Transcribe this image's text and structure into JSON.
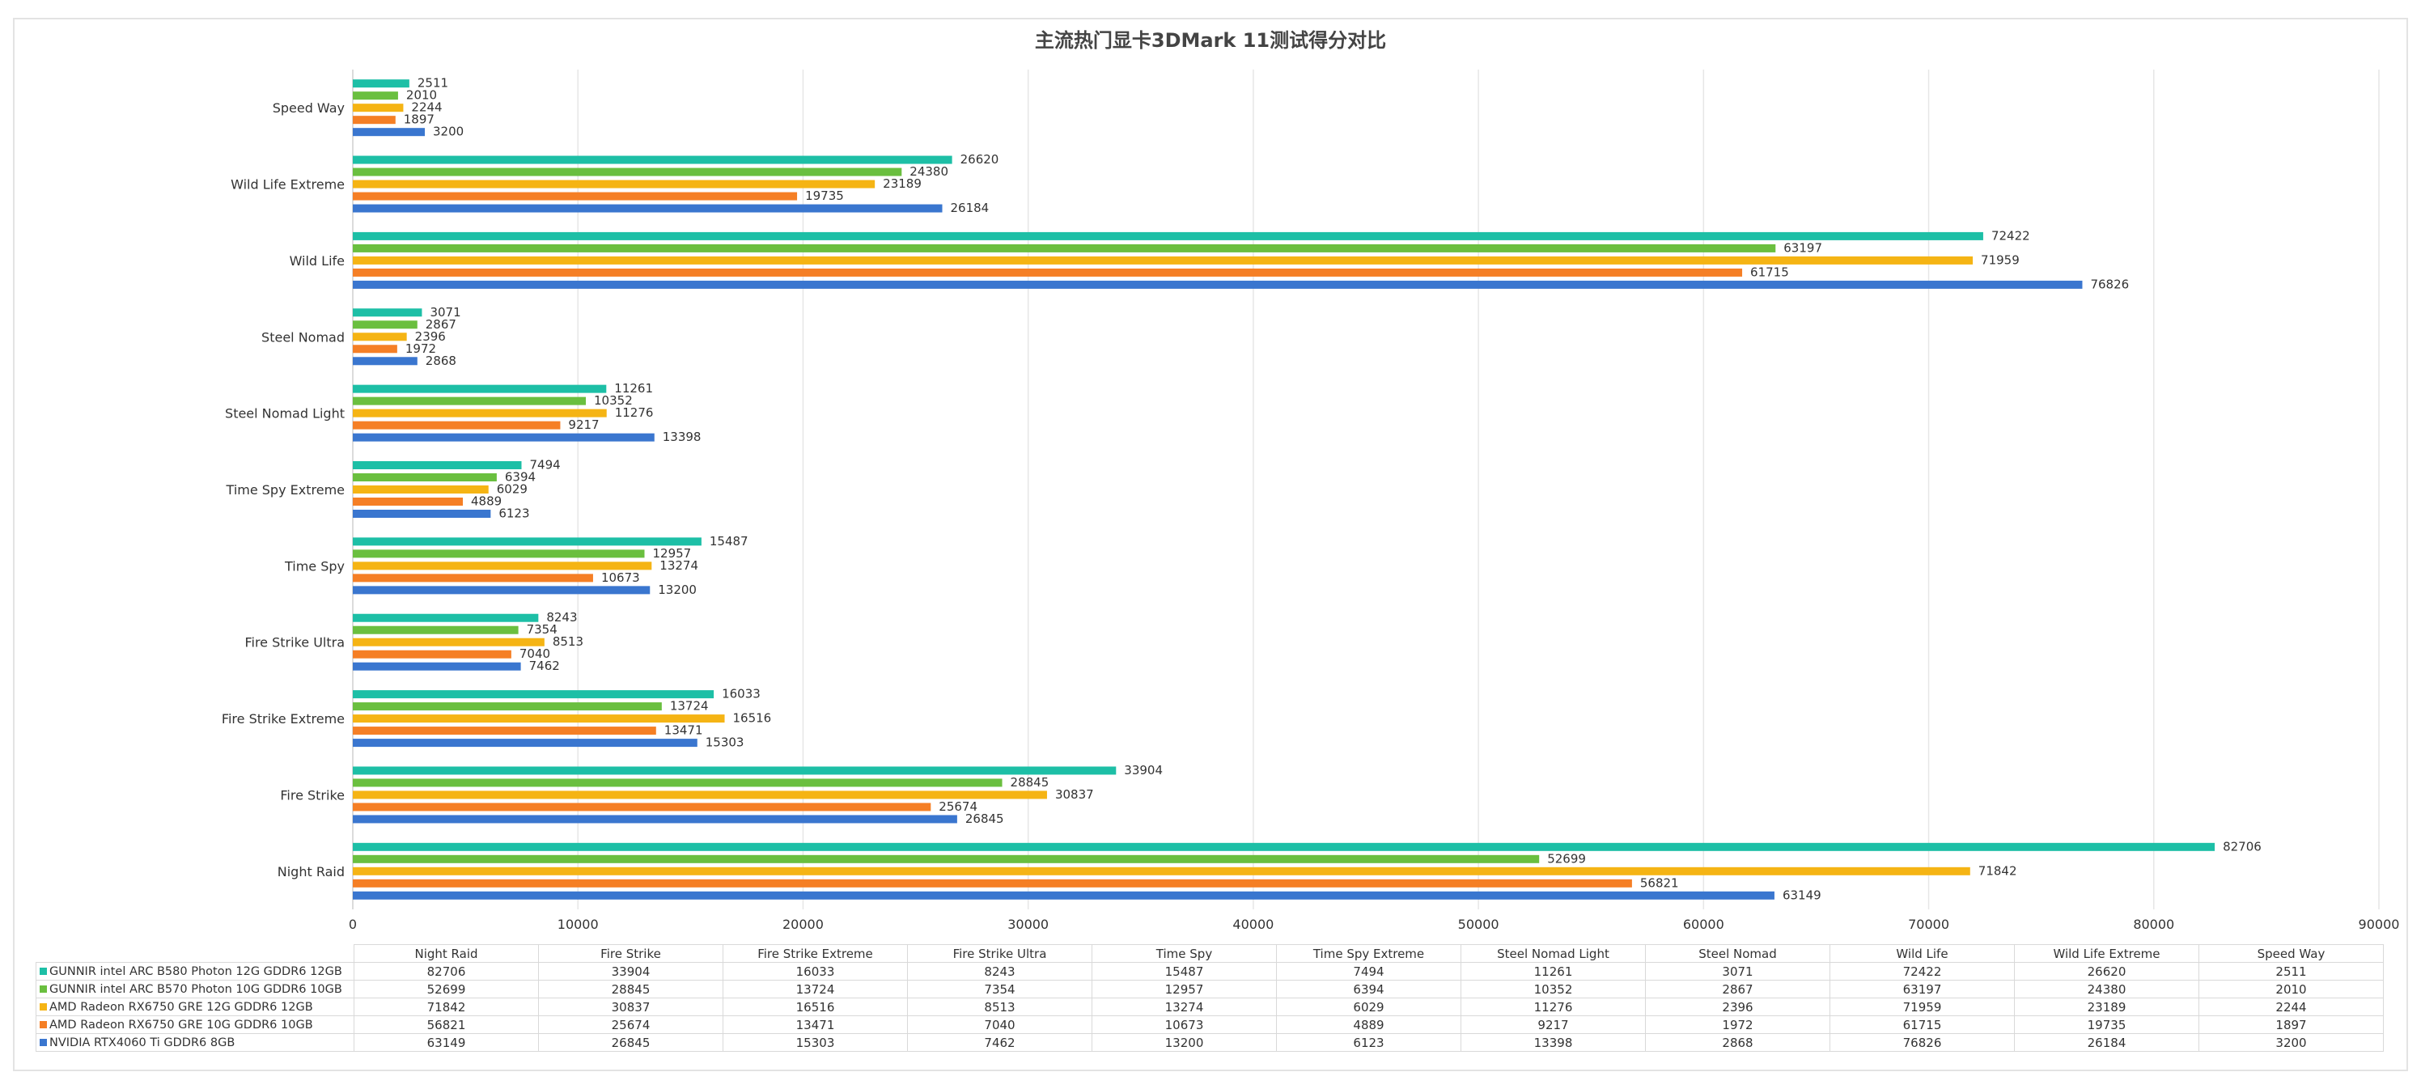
{
  "chart_data": {
    "type": "bar",
    "orientation": "horizontal",
    "title": "主流热门显卡3DMark 11测试得分对比",
    "categories": [
      "Speed Way",
      "Wild Life Extreme",
      "Wild Life",
      "Steel Nomad",
      "Steel Nomad Light",
      "Time Spy Extreme",
      "Time Spy",
      "Fire Strike Ultra",
      "Fire Strike Extreme",
      "Fire Strike",
      "Night Raid"
    ],
    "series": [
      {
        "name": "GUNNIR intel ARC B580 Photon 12G GDDR6 12GB",
        "color": "#1dbfa6",
        "values": [
          2511,
          26620,
          72422,
          3071,
          11261,
          7494,
          15487,
          8243,
          16033,
          33904,
          82706
        ]
      },
      {
        "name": "GUNNIR intel ARC B570 Photon 10G GDDR6 10GB",
        "color": "#6abf3f",
        "values": [
          2010,
          24380,
          63197,
          2867,
          10352,
          6394,
          12957,
          7354,
          13724,
          28845,
          52699
        ]
      },
      {
        "name": "AMD Radeon RX6750 GRE 12G GDDR6 12GB",
        "color": "#f5b414",
        "values": [
          2244,
          23189,
          71959,
          2396,
          11276,
          6029,
          13274,
          8513,
          16516,
          30837,
          71842
        ]
      },
      {
        "name": "AMD Radeon RX6750 GRE 10G GDDR6 10GB",
        "color": "#f57f25",
        "values": [
          1897,
          19735,
          61715,
          1972,
          9217,
          4889,
          10673,
          7040,
          13471,
          25674,
          56821
        ]
      },
      {
        "name": "NVIDIA RTX4060 Ti GDDR6 8GB",
        "color": "#3a76cf",
        "values": [
          3200,
          26184,
          76826,
          2868,
          13398,
          6123,
          13200,
          7462,
          15303,
          26845,
          63149
        ]
      }
    ],
    "xlim": [
      0,
      90000
    ],
    "xticks": [
      "0",
      "10000",
      "20000",
      "30000",
      "40000",
      "50000",
      "60000",
      "70000",
      "80000",
      "90000"
    ],
    "grid": true,
    "legend": "table-below",
    "table_columns": [
      "Night Raid",
      "Fire Strike",
      "Fire Strike Extreme",
      "Fire Strike Ultra",
      "Time Spy",
      "Time Spy Extreme",
      "Steel Nomad Light",
      "Steel Nomad",
      "Wild Life",
      "Wild Life Extreme",
      "Speed Way"
    ]
  }
}
